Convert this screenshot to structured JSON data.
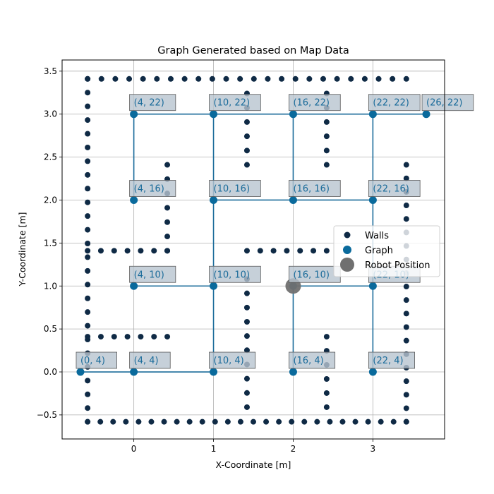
{
  "chart_data": {
    "type": "scatter",
    "title": "Graph Generated based on Map Data",
    "xlabel": "X-Coordinate [m]",
    "ylabel": "Y-Coordinate [m]",
    "xlim": [
      -0.9,
      3.9
    ],
    "ylim": [
      -0.78,
      3.63
    ],
    "xticks": [
      0,
      1,
      2,
      3
    ],
    "yticks": [
      -0.5,
      0.0,
      0.5,
      1.0,
      1.5,
      2.0,
      2.5,
      3.0,
      3.5
    ],
    "xtick_labels": [
      "0",
      "1",
      "2",
      "3"
    ],
    "ytick_labels": [
      "−0.5",
      "0.0",
      "0.5",
      "1.0",
      "1.5",
      "2.0",
      "2.5",
      "3.0",
      "3.5"
    ],
    "grid": true,
    "legend_position": "center-right",
    "legend": [
      {
        "label": "Walls",
        "marker": "walls"
      },
      {
        "label": "Graph",
        "marker": "graph"
      },
      {
        "label": "Robot Position",
        "marker": "robot"
      }
    ],
    "colors": {
      "walls": "#0f2a45",
      "graph": "#0a6a9c",
      "edge": "#1a6b9a",
      "robot": "#707070",
      "label_box": "#b8c4d0",
      "label_text": "#1a6b9a"
    },
    "walls": {
      "rows": [
        {
          "y": 3.41,
          "x_from": -0.58,
          "x_to": 3.42,
          "count": 24
        },
        {
          "y": -0.58,
          "x_from": -0.58,
          "x_to": 3.42,
          "count": 26
        },
        {
          "y": 1.41,
          "x_from": -0.58,
          "x_to": 0.42,
          "count": 7
        },
        {
          "y": 0.41,
          "x_from": -0.58,
          "x_to": 0.42,
          "count": 7
        },
        {
          "y": 1.41,
          "x_from": 1.42,
          "x_to": 2.42,
          "count": 7
        }
      ],
      "cols": [
        {
          "x": -0.58,
          "y_from": -0.58,
          "y_to": 3.41,
          "count": 26
        },
        {
          "x": 3.42,
          "y_from": -0.58,
          "y_to": 2.41,
          "count": 20
        },
        {
          "x": 1.42,
          "y_from": 2.41,
          "y_to": 3.24,
          "count": 6
        },
        {
          "x": 2.42,
          "y_from": 2.41,
          "y_to": 3.24,
          "count": 6
        },
        {
          "x": 0.42,
          "y_from": 1.41,
          "y_to": 2.41,
          "count": 7
        },
        {
          "x": 1.42,
          "y_from": -0.41,
          "y_to": 1.08,
          "count": 10
        },
        {
          "x": 2.42,
          "y_from": -0.41,
          "y_to": 0.41,
          "count": 6
        }
      ]
    },
    "nodes": [
      {
        "label": "(4, 22)",
        "x": 0,
        "y": 3
      },
      {
        "label": "(10, 22)",
        "x": 1,
        "y": 3
      },
      {
        "label": "(16, 22)",
        "x": 2,
        "y": 3
      },
      {
        "label": "(22, 22)",
        "x": 3,
        "y": 3
      },
      {
        "label": "(26, 22)",
        "x": 3.67,
        "y": 3
      },
      {
        "label": "(4, 16)",
        "x": 0,
        "y": 2
      },
      {
        "label": "(10, 16)",
        "x": 1,
        "y": 2
      },
      {
        "label": "(16, 16)",
        "x": 2,
        "y": 2
      },
      {
        "label": "(22, 16)",
        "x": 3,
        "y": 2
      },
      {
        "label": "(4, 10)",
        "x": 0,
        "y": 1
      },
      {
        "label": "(10, 10)",
        "x": 1,
        "y": 1
      },
      {
        "label": "(16, 10)",
        "x": 2,
        "y": 1
      },
      {
        "label": "(22, 10)",
        "x": 3,
        "y": 1
      },
      {
        "label": "(0, 4)",
        "x": -0.67,
        "y": 0
      },
      {
        "label": "(4, 4)",
        "x": 0,
        "y": 0
      },
      {
        "label": "(10, 4)",
        "x": 1,
        "y": 0
      },
      {
        "label": "(16, 4)",
        "x": 2,
        "y": 0
      },
      {
        "label": "(22, 4)",
        "x": 3,
        "y": 0
      }
    ],
    "edges": [
      [
        0,
        1
      ],
      [
        1,
        2
      ],
      [
        2,
        3
      ],
      [
        3,
        4
      ],
      [
        0,
        5
      ],
      [
        1,
        6
      ],
      [
        2,
        7
      ],
      [
        3,
        8
      ],
      [
        6,
        7
      ],
      [
        7,
        8
      ],
      [
        6,
        10
      ],
      [
        8,
        12
      ],
      [
        9,
        10
      ],
      [
        11,
        12
      ],
      [
        10,
        15
      ],
      [
        13,
        14
      ],
      [
        14,
        15
      ],
      [
        11,
        16
      ],
      [
        12,
        17
      ]
    ],
    "robot": {
      "x": 2,
      "y": 1
    }
  }
}
